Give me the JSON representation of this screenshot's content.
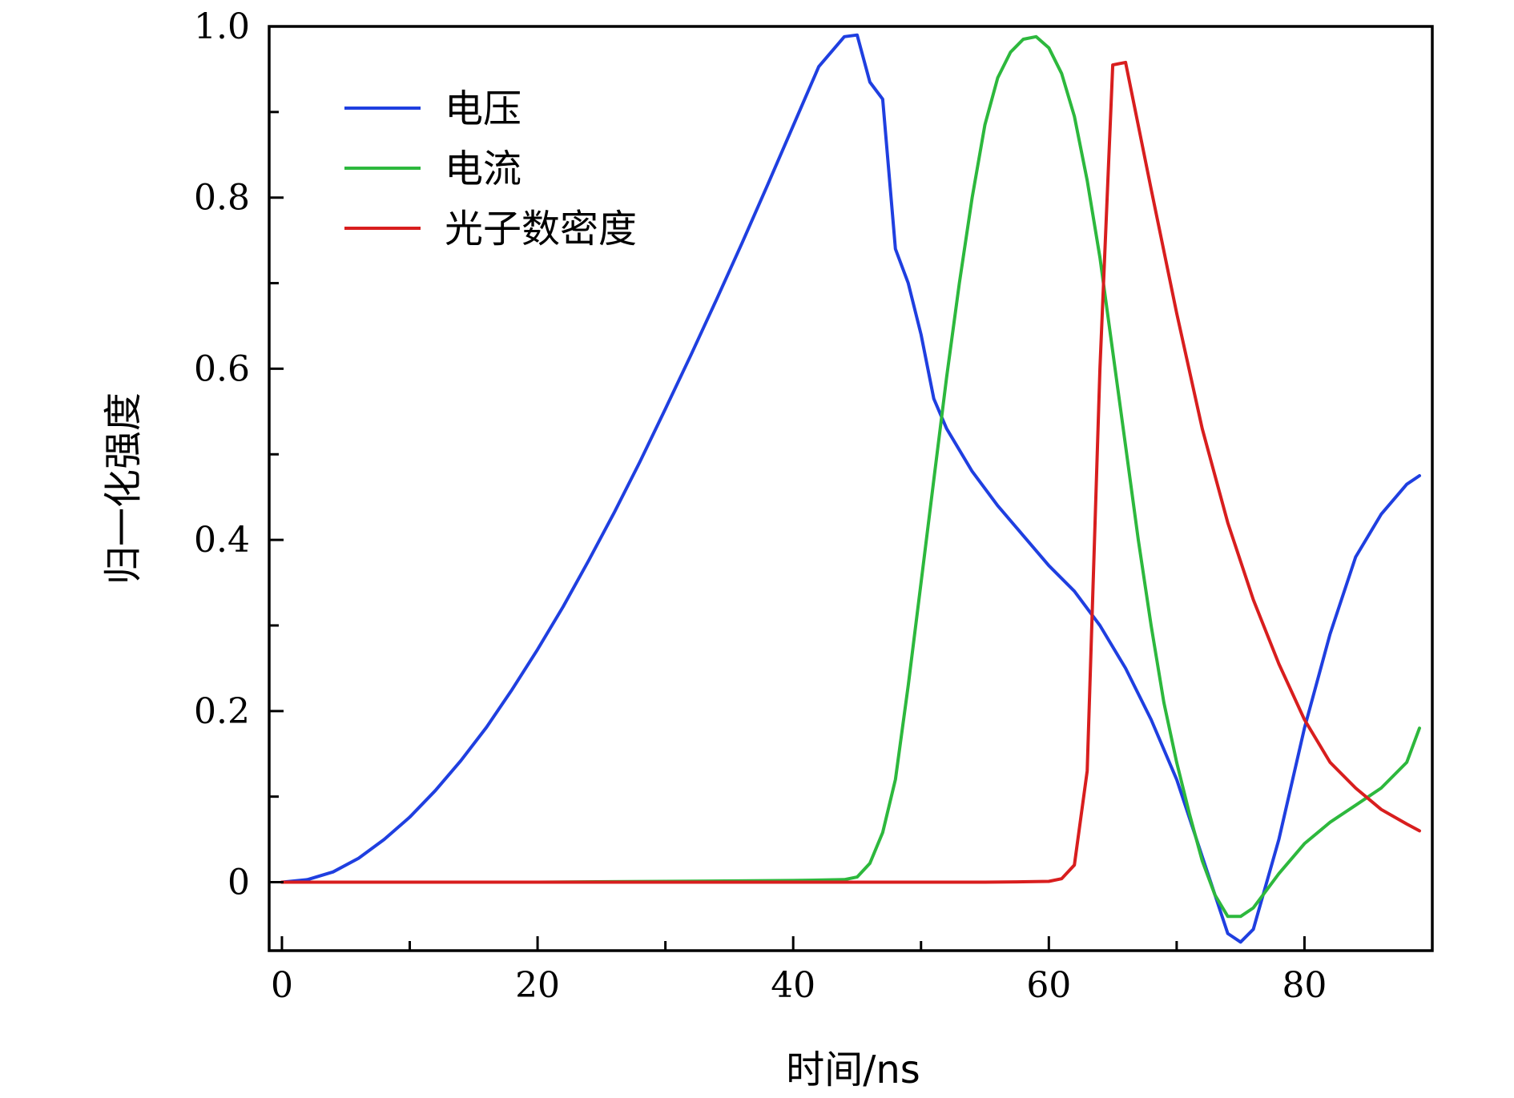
{
  "chart_data": {
    "type": "line",
    "title": "",
    "xlabel": "时间/ns",
    "ylabel": "归一化强度",
    "xlim": [
      -1,
      90
    ],
    "ylim": [
      -0.08,
      1.0
    ],
    "xticks": [
      0,
      20,
      40,
      60,
      80
    ],
    "xtick_labels": [
      "0",
      "20",
      "40",
      "60",
      "80"
    ],
    "yticks": [
      0,
      0.2,
      0.4,
      0.6,
      0.8,
      1.0
    ],
    "ytick_labels": [
      "0",
      "0.2",
      "0.4",
      "0.6",
      "0.8",
      "1.0"
    ],
    "grid": false,
    "legend_position": "top-left",
    "series": [
      {
        "name": "电压",
        "color": "#1f3fe0",
        "x": [
          0,
          2,
          4,
          6,
          8,
          10,
          12,
          14,
          16,
          18,
          20,
          22,
          24,
          26,
          28,
          30,
          32,
          34,
          36,
          38,
          40,
          42,
          44,
          45,
          46,
          47,
          48,
          49,
          50,
          51,
          52,
          54,
          56,
          58,
          60,
          62,
          64,
          66,
          68,
          70,
          72,
          74,
          75,
          76,
          78,
          80,
          82,
          84,
          86,
          88,
          89
        ],
        "y": [
          0,
          0.003,
          0.012,
          0.028,
          0.05,
          0.076,
          0.107,
          0.142,
          0.181,
          0.225,
          0.272,
          0.322,
          0.376,
          0.432,
          0.491,
          0.553,
          0.616,
          0.681,
          0.747,
          0.815,
          0.884,
          0.953,
          0.988,
          0.99,
          0.935,
          0.915,
          0.74,
          0.7,
          0.64,
          0.565,
          0.53,
          0.48,
          0.44,
          0.405,
          0.37,
          0.34,
          0.3,
          0.25,
          0.19,
          0.12,
          0.03,
          -0.06,
          -0.07,
          -0.055,
          0.05,
          0.18,
          0.29,
          0.38,
          0.43,
          0.465,
          0.475
        ]
      },
      {
        "name": "电流",
        "color": "#2db83d",
        "x": [
          0,
          10,
          20,
          30,
          40,
          44,
          45,
          46,
          47,
          48,
          49,
          50,
          51,
          52,
          53,
          54,
          55,
          56,
          57,
          58,
          59,
          60,
          61,
          62,
          63,
          64,
          65,
          66,
          67,
          68,
          69,
          70,
          71,
          72,
          73,
          74,
          75,
          76,
          77,
          78,
          80,
          82,
          84,
          86,
          88,
          89
        ],
        "y": [
          0,
          0,
          0,
          0.001,
          0.002,
          0.003,
          0.006,
          0.022,
          0.058,
          0.12,
          0.23,
          0.35,
          0.47,
          0.59,
          0.7,
          0.8,
          0.885,
          0.94,
          0.97,
          0.985,
          0.988,
          0.975,
          0.945,
          0.895,
          0.82,
          0.73,
          0.62,
          0.51,
          0.4,
          0.3,
          0.21,
          0.14,
          0.08,
          0.025,
          -0.015,
          -0.04,
          -0.04,
          -0.03,
          -0.01,
          0.01,
          0.045,
          0.07,
          0.09,
          0.11,
          0.14,
          0.18
        ]
      },
      {
        "name": "光子数密度",
        "color": "#d81e1e",
        "x": [
          0,
          20,
          40,
          55,
          58,
          60,
          61,
          62,
          63,
          64,
          65,
          66,
          68,
          70,
          72,
          74,
          76,
          78,
          80,
          82,
          84,
          86,
          88,
          89
        ],
        "y": [
          0,
          0,
          0,
          0,
          0.0005,
          0.001,
          0.004,
          0.02,
          0.13,
          0.6,
          0.955,
          0.958,
          0.81,
          0.665,
          0.53,
          0.42,
          0.33,
          0.255,
          0.19,
          0.14,
          0.11,
          0.085,
          0.068,
          0.06
        ]
      }
    ]
  }
}
